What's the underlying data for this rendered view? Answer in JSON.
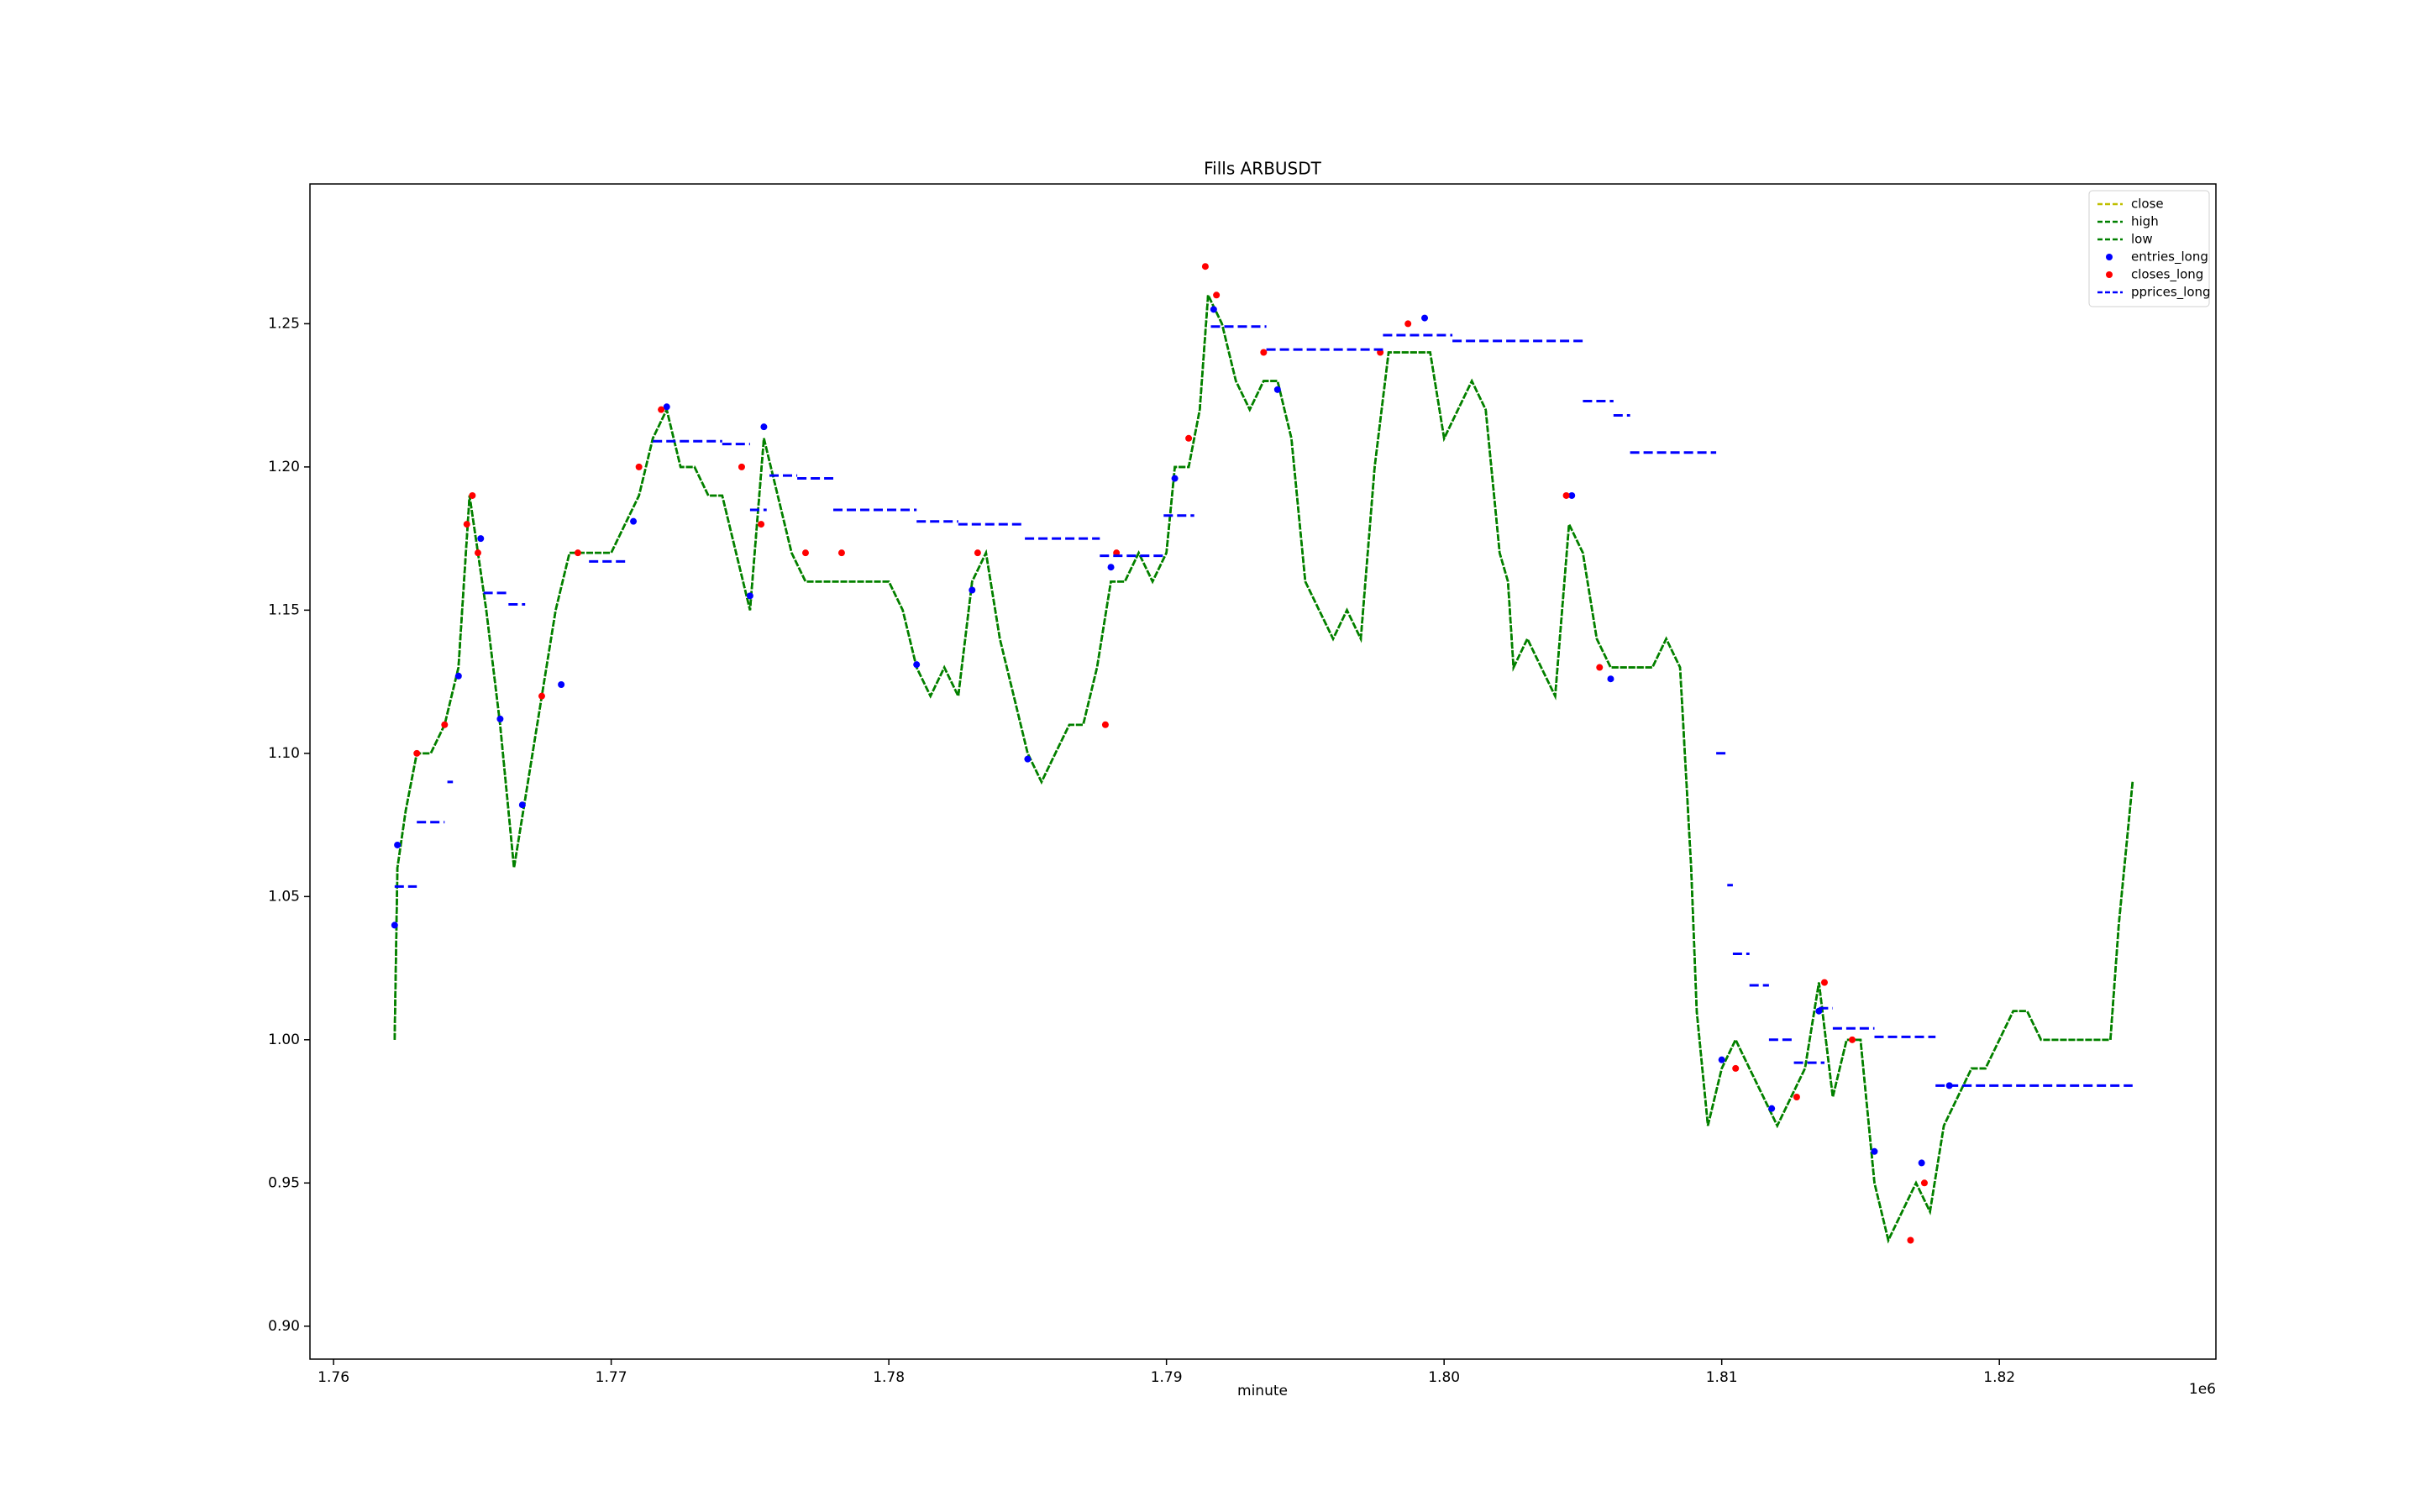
{
  "chart_data": {
    "type": "line",
    "title": "Fills ARBUSDT",
    "x_label": "minute",
    "x_offset_label": "1e6",
    "xlim": [
      1759150,
      1827800
    ],
    "ylim": [
      0.8885,
      1.2988
    ],
    "xticks": [
      {
        "value": 1760000,
        "label": "1.76"
      },
      {
        "value": 1770000,
        "label": "1.77"
      },
      {
        "value": 1780000,
        "label": "1.78"
      },
      {
        "value": 1790000,
        "label": "1.79"
      },
      {
        "value": 1800000,
        "label": "1.80"
      },
      {
        "value": 1810000,
        "label": "1.81"
      },
      {
        "value": 1820000,
        "label": "1.82"
      }
    ],
    "yticks": [
      {
        "value": 0.9,
        "label": "0.90"
      },
      0.95,
      {
        "value": 1.0,
        "label": "1.00"
      },
      1.05,
      {
        "value": 1.1,
        "label": "1.10"
      },
      1.15,
      {
        "value": 1.2,
        "label": "1.20"
      },
      1.25
    ],
    "grid": false,
    "legend_loc": "upper right",
    "x": [
      1762200,
      1762300,
      1762600,
      1763000,
      1763500,
      1764000,
      1764500,
      1764900,
      1765200,
      1765500,
      1766000,
      1766500,
      1767000,
      1767500,
      1768000,
      1768500,
      1769000,
      1769500,
      1770000,
      1770500,
      1771000,
      1771500,
      1772000,
      1772500,
      1773000,
      1773500,
      1774000,
      1774500,
      1775000,
      1775500,
      1776000,
      1776500,
      1777000,
      1777500,
      1778000,
      1779000,
      1780000,
      1780500,
      1781000,
      1781500,
      1782000,
      1782500,
      1783000,
      1783500,
      1784000,
      1784500,
      1785000,
      1785500,
      1786000,
      1786500,
      1787000,
      1787500,
      1788000,
      1788500,
      1789000,
      1789500,
      1790000,
      1790300,
      1790800,
      1791200,
      1791500,
      1792000,
      1792500,
      1793000,
      1793500,
      1794000,
      1794500,
      1795000,
      1795500,
      1796000,
      1796500,
      1797000,
      1797500,
      1798000,
      1798500,
      1799000,
      1799500,
      1800000,
      1800500,
      1801000,
      1801500,
      1802000,
      1802300,
      1802500,
      1803000,
      1803500,
      1804000,
      1804500,
      1805000,
      1805500,
      1806000,
      1806500,
      1807000,
      1807500,
      1808000,
      1808500,
      1808900,
      1809100,
      1809500,
      1810000,
      1810500,
      1811000,
      1811500,
      1812000,
      1812500,
      1813000,
      1813500,
      1814000,
      1814500,
      1815000,
      1815500,
      1816000,
      1816500,
      1817000,
      1817500,
      1818000,
      1818500,
      1819000,
      1819500,
      1820000,
      1820500,
      1821000,
      1821500,
      1822000,
      1822500,
      1823000,
      1823500,
      1824000,
      1824300,
      1824600,
      1824800
    ],
    "series": [
      {
        "name": "close",
        "color": "#bfbf00",
        "kind": "line",
        "linestyle": "dashed",
        "values": [
          1.0,
          1.06,
          1.08,
          1.1,
          1.1,
          1.11,
          1.13,
          1.19,
          1.17,
          1.15,
          1.11,
          1.06,
          1.09,
          1.12,
          1.15,
          1.17,
          1.17,
          1.17,
          1.17,
          1.18,
          1.19,
          1.21,
          1.22,
          1.2,
          1.2,
          1.19,
          1.19,
          1.17,
          1.15,
          1.21,
          1.19,
          1.17,
          1.16,
          1.16,
          1.16,
          1.16,
          1.16,
          1.15,
          1.13,
          1.12,
          1.13,
          1.12,
          1.16,
          1.17,
          1.14,
          1.12,
          1.1,
          1.09,
          1.1,
          1.11,
          1.11,
          1.13,
          1.16,
          1.16,
          1.17,
          1.16,
          1.17,
          1.2,
          1.2,
          1.22,
          1.26,
          1.25,
          1.23,
          1.22,
          1.23,
          1.23,
          1.21,
          1.16,
          1.15,
          1.14,
          1.15,
          1.14,
          1.2,
          1.24,
          1.24,
          1.24,
          1.24,
          1.21,
          1.22,
          1.23,
          1.22,
          1.17,
          1.16,
          1.13,
          1.14,
          1.13,
          1.12,
          1.18,
          1.17,
          1.14,
          1.13,
          1.13,
          1.13,
          1.13,
          1.14,
          1.13,
          1.06,
          1.01,
          0.97,
          0.99,
          1.0,
          0.99,
          0.98,
          0.97,
          0.98,
          0.99,
          1.02,
          0.98,
          1.0,
          1.0,
          0.95,
          0.93,
          0.94,
          0.95,
          0.94,
          0.97,
          0.98,
          0.99,
          0.99,
          1.0,
          1.01,
          1.01,
          1.0,
          1.0,
          1.0,
          1.0,
          1.0,
          1.0,
          1.04,
          1.07,
          1.09
        ]
      },
      {
        "name": "high",
        "color": "#008000",
        "kind": "line",
        "linestyle": "dashed",
        "values": [
          1.0,
          1.06,
          1.08,
          1.1,
          1.1,
          1.11,
          1.13,
          1.19,
          1.17,
          1.15,
          1.11,
          1.06,
          1.09,
          1.12,
          1.15,
          1.17,
          1.17,
          1.17,
          1.17,
          1.18,
          1.19,
          1.21,
          1.22,
          1.2,
          1.2,
          1.19,
          1.19,
          1.17,
          1.15,
          1.21,
          1.19,
          1.17,
          1.16,
          1.16,
          1.16,
          1.16,
          1.16,
          1.15,
          1.13,
          1.12,
          1.13,
          1.12,
          1.16,
          1.17,
          1.14,
          1.12,
          1.1,
          1.09,
          1.1,
          1.11,
          1.11,
          1.13,
          1.16,
          1.16,
          1.17,
          1.16,
          1.17,
          1.2,
          1.2,
          1.22,
          1.26,
          1.25,
          1.23,
          1.22,
          1.23,
          1.23,
          1.21,
          1.16,
          1.15,
          1.14,
          1.15,
          1.14,
          1.2,
          1.24,
          1.24,
          1.24,
          1.24,
          1.21,
          1.22,
          1.23,
          1.22,
          1.17,
          1.16,
          1.13,
          1.14,
          1.13,
          1.12,
          1.18,
          1.17,
          1.14,
          1.13,
          1.13,
          1.13,
          1.13,
          1.14,
          1.13,
          1.06,
          1.01,
          0.97,
          0.99,
          1.0,
          0.99,
          0.98,
          0.97,
          0.98,
          0.99,
          1.02,
          0.98,
          1.0,
          1.0,
          0.95,
          0.93,
          0.94,
          0.95,
          0.94,
          0.97,
          0.98,
          0.99,
          0.99,
          1.0,
          1.01,
          1.01,
          1.0,
          1.0,
          1.0,
          1.0,
          1.0,
          1.0,
          1.04,
          1.07,
          1.09
        ]
      },
      {
        "name": "low",
        "color": "#008000",
        "kind": "line",
        "linestyle": "dashed",
        "values": [
          1.0,
          1.06,
          1.08,
          1.1,
          1.1,
          1.11,
          1.13,
          1.19,
          1.17,
          1.15,
          1.11,
          1.06,
          1.09,
          1.12,
          1.15,
          1.17,
          1.17,
          1.17,
          1.17,
          1.18,
          1.19,
          1.21,
          1.22,
          1.2,
          1.2,
          1.19,
          1.19,
          1.17,
          1.15,
          1.21,
          1.19,
          1.17,
          1.16,
          1.16,
          1.16,
          1.16,
          1.16,
          1.15,
          1.13,
          1.12,
          1.13,
          1.12,
          1.16,
          1.17,
          1.14,
          1.12,
          1.1,
          1.09,
          1.1,
          1.11,
          1.11,
          1.13,
          1.16,
          1.16,
          1.17,
          1.16,
          1.17,
          1.2,
          1.2,
          1.22,
          1.26,
          1.25,
          1.23,
          1.22,
          1.23,
          1.23,
          1.21,
          1.16,
          1.15,
          1.14,
          1.15,
          1.14,
          1.2,
          1.24,
          1.24,
          1.24,
          1.24,
          1.21,
          1.22,
          1.23,
          1.22,
          1.17,
          1.16,
          1.13,
          1.14,
          1.13,
          1.12,
          1.18,
          1.17,
          1.14,
          1.13,
          1.13,
          1.13,
          1.13,
          1.14,
          1.13,
          1.06,
          1.01,
          0.97,
          0.99,
          1.0,
          0.99,
          0.98,
          0.97,
          0.98,
          0.99,
          1.02,
          0.98,
          1.0,
          1.0,
          0.95,
          0.93,
          0.94,
          0.95,
          0.94,
          0.97,
          0.98,
          0.99,
          0.99,
          1.0,
          1.01,
          1.01,
          1.0,
          1.0,
          1.0,
          1.0,
          1.0,
          1.0,
          1.04,
          1.07,
          1.09
        ]
      },
      {
        "name": "entries_long",
        "color": "#0000ff",
        "kind": "scatter",
        "x": [
          1762200,
          1762300,
          1764500,
          1765300,
          1766000,
          1766800,
          1768200,
          1770800,
          1772000,
          1775000,
          1775500,
          1781000,
          1783000,
          1785000,
          1788000,
          1790300,
          1791700,
          1794000,
          1799300,
          1804600,
          1806000,
          1810000,
          1811800,
          1813500,
          1815500,
          1817200,
          1818200
        ],
        "values": [
          1.04,
          1.068,
          1.127,
          1.175,
          1.112,
          1.082,
          1.124,
          1.181,
          1.221,
          1.155,
          1.214,
          1.131,
          1.157,
          1.098,
          1.165,
          1.196,
          1.255,
          1.227,
          1.252,
          1.19,
          1.126,
          0.993,
          0.976,
          1.01,
          0.961,
          0.957,
          0.984
        ]
      },
      {
        "name": "closes_long",
        "color": "#ff0000",
        "kind": "scatter",
        "x": [
          1763000,
          1764000,
          1764800,
          1765000,
          1765200,
          1767500,
          1768800,
          1771000,
          1771800,
          1774700,
          1775400,
          1777000,
          1778300,
          1783200,
          1787800,
          1788200,
          1790800,
          1791400,
          1791800,
          1793500,
          1797700,
          1798700,
          1804400,
          1805600,
          1810500,
          1812700,
          1813700,
          1814700,
          1816800,
          1817300
        ],
        "values": [
          1.1,
          1.11,
          1.18,
          1.19,
          1.17,
          1.12,
          1.17,
          1.2,
          1.22,
          1.2,
          1.18,
          1.17,
          1.17,
          1.17,
          1.11,
          1.17,
          1.21,
          1.27,
          1.26,
          1.24,
          1.24,
          1.25,
          1.19,
          1.13,
          0.99,
          0.98,
          1.02,
          1.0,
          0.93,
          0.95
        ]
      },
      {
        "name": "pprices_long",
        "color": "#0000ff",
        "kind": "line",
        "linestyle": "dashed",
        "x": [
          1762200,
          1763000,
          null,
          1763000,
          1764000,
          null,
          1764100,
          1764300,
          null,
          1765400,
          1766300,
          null,
          1766300,
          1766900,
          null,
          1769200,
          1770600,
          null,
          1771500,
          1774000,
          null,
          1774000,
          1775000,
          null,
          1775000,
          1775600,
          null,
          1775700,
          1776700,
          null,
          1776700,
          1778000,
          null,
          1778000,
          1781000,
          null,
          1781000,
          1782500,
          null,
          1782500,
          1784900,
          null,
          1784900,
          1787600,
          null,
          1787600,
          1789900,
          null,
          1789900,
          1791000,
          null,
          1791600,
          1793600,
          null,
          1793600,
          1797800,
          null,
          1797800,
          1800300,
          null,
          1800300,
          1805000,
          null,
          1805000,
          1806100,
          null,
          1806100,
          1806700,
          null,
          1806700,
          1809800,
          null,
          1809800,
          1810200,
          null,
          1810200,
          1810400,
          null,
          1810400,
          1811000,
          null,
          1811000,
          1811700,
          null,
          1811700,
          1812600,
          null,
          1812600,
          1813700,
          null,
          1813500,
          1814000,
          null,
          1814000,
          1815500,
          null,
          1815500,
          1817700,
          null,
          1817700,
          1824800
        ],
        "values": [
          1.0535,
          1.0535,
          null,
          1.076,
          1.076,
          null,
          1.09,
          1.09,
          null,
          1.156,
          1.156,
          null,
          1.152,
          1.152,
          null,
          1.167,
          1.167,
          null,
          1.209,
          1.209,
          null,
          1.208,
          1.208,
          null,
          1.185,
          1.185,
          null,
          1.197,
          1.197,
          null,
          1.196,
          1.196,
          null,
          1.185,
          1.185,
          null,
          1.181,
          1.181,
          null,
          1.18,
          1.18,
          null,
          1.175,
          1.175,
          null,
          1.169,
          1.169,
          null,
          1.183,
          1.183,
          null,
          1.249,
          1.249,
          null,
          1.241,
          1.241,
          null,
          1.246,
          1.246,
          null,
          1.244,
          1.244,
          null,
          1.223,
          1.223,
          null,
          1.218,
          1.218,
          null,
          1.205,
          1.205,
          null,
          1.1,
          1.1,
          null,
          1.054,
          1.054,
          null,
          1.03,
          1.03,
          null,
          1.019,
          1.019,
          null,
          1.0,
          1.0,
          null,
          0.992,
          0.992,
          null,
          1.011,
          1.011,
          null,
          1.004,
          1.004,
          null,
          1.001,
          1.001,
          null,
          0.984,
          0.984
        ]
      }
    ]
  }
}
